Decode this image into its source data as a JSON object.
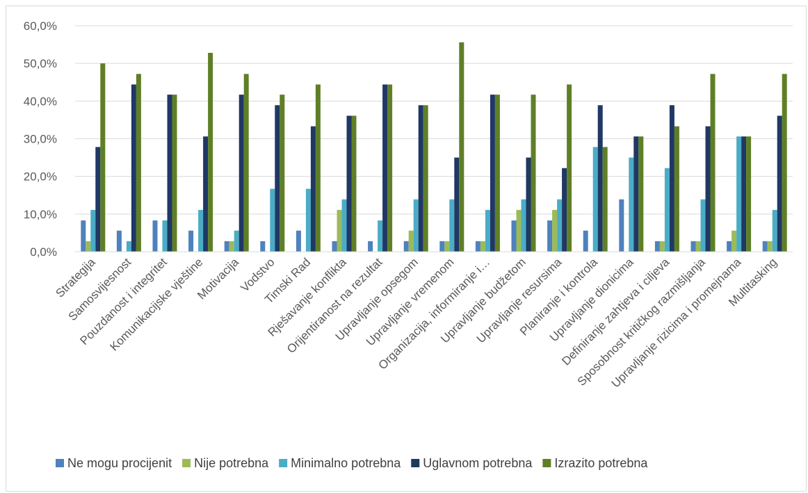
{
  "chart_data": {
    "type": "bar",
    "title": "",
    "xlabel": "",
    "ylabel": "",
    "ylim": [
      0,
      60
    ],
    "yticks": [
      "0,0%",
      "10,0%",
      "20,0%",
      "30,0%",
      "40,0%",
      "50,0%",
      "60,0%"
    ],
    "grid": true,
    "legend_position": "bottom",
    "categories": [
      "Strategija",
      "Samosvijesnost",
      "Pouzdanost i integritet",
      "Komunikacijske vještine",
      "Motivacija",
      "Vodstvo",
      "Timski Rad",
      "Rješavanje konflikta",
      "Orijentiranost na rezultat",
      "Upravljanje opsegom",
      "Upravljanje vremenom",
      "Organizacija, informiranje i…",
      "Upravljanje budžetom",
      "Upravljanje resursima",
      "Planiranje i kontrola",
      "Upravljanje dionicima",
      "Definiranje zahtjeva i ciljeva",
      "Sposobnost kritičkog razmišljanja",
      "Upravljanje rizicima i promejnama",
      "Multitasking"
    ],
    "series": [
      {
        "name": "Ne mogu procijenit",
        "color": "#4f81bd",
        "values": [
          8.3,
          5.6,
          8.3,
          5.6,
          2.8,
          2.8,
          5.6,
          2.8,
          2.8,
          2.8,
          2.8,
          2.8,
          8.3,
          8.3,
          5.6,
          13.9,
          2.8,
          2.8,
          2.8,
          2.8
        ]
      },
      {
        "name": "Nije potrebna",
        "color": "#9bbb59",
        "values": [
          2.8,
          0,
          0,
          0,
          2.8,
          0,
          0,
          11.1,
          0,
          5.6,
          2.8,
          2.8,
          11.1,
          11.1,
          0,
          0,
          2.8,
          2.8,
          5.6,
          2.8
        ]
      },
      {
        "name": "Minimalno potrebna",
        "color": "#4bacc6",
        "values": [
          11.1,
          2.8,
          8.3,
          11.1,
          5.6,
          16.7,
          16.7,
          13.9,
          8.3,
          13.9,
          13.9,
          11.1,
          13.9,
          13.9,
          27.8,
          25.0,
          22.2,
          13.9,
          30.6,
          11.1
        ]
      },
      {
        "name": "Uglavnom potrebna",
        "color": "#1f3864",
        "values": [
          27.8,
          44.4,
          41.7,
          30.6,
          41.7,
          38.9,
          33.3,
          36.1,
          44.4,
          38.9,
          25.0,
          41.7,
          25.0,
          22.2,
          38.9,
          30.6,
          38.9,
          33.3,
          30.6,
          36.1
        ]
      },
      {
        "name": "Izrazito potrebna",
        "color": "#5f7f27",
        "values": [
          50.0,
          47.2,
          41.7,
          52.8,
          47.2,
          41.7,
          44.4,
          36.1,
          44.4,
          38.9,
          55.6,
          41.7,
          41.7,
          44.4,
          27.8,
          30.6,
          33.3,
          47.2,
          30.6,
          47.2
        ]
      }
    ]
  }
}
